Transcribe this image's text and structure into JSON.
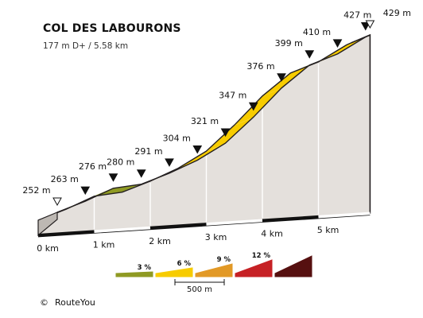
{
  "header": {
    "title": "COL DES LABOURONS",
    "subtitle": "177 m D+ / 5.58 km"
  },
  "credit": {
    "symbol": "©",
    "text": "RouteYou"
  },
  "chart_data": {
    "type": "area",
    "title": "COL DES LABOURONS",
    "subtitle": "177 m D+ / 5.58 km",
    "x_unit": "km",
    "y_unit": "m",
    "distance_km": 5.58,
    "total_climb_m": 177,
    "elevation_points": [
      {
        "km": 0.0,
        "elevation_m": 252,
        "label": "252 m",
        "marker": "start"
      },
      {
        "km": 0.5,
        "elevation_m": 263,
        "label": "263 m",
        "marker": "waypoint"
      },
      {
        "km": 1.0,
        "elevation_m": 276,
        "label": "276 m",
        "marker": "waypoint"
      },
      {
        "km": 1.5,
        "elevation_m": 280,
        "label": "280 m",
        "marker": "waypoint"
      },
      {
        "km": 2.0,
        "elevation_m": 291,
        "label": "291 m",
        "marker": "waypoint"
      },
      {
        "km": 2.5,
        "elevation_m": 304,
        "label": "304 m",
        "marker": "waypoint"
      },
      {
        "km": 3.0,
        "elevation_m": 321,
        "label": "321 m",
        "marker": "waypoint"
      },
      {
        "km": 3.5,
        "elevation_m": 347,
        "label": "347 m",
        "marker": "waypoint"
      },
      {
        "km": 4.0,
        "elevation_m": 376,
        "label": "376 m",
        "marker": "waypoint"
      },
      {
        "km": 4.5,
        "elevation_m": 399,
        "label": "399 m",
        "marker": "waypoint"
      },
      {
        "km": 5.0,
        "elevation_m": 410,
        "label": "410 m",
        "marker": "waypoint"
      },
      {
        "km": 5.5,
        "elevation_m": 427,
        "label": "427 m",
        "marker": "waypoint"
      },
      {
        "km": 5.58,
        "elevation_m": 429,
        "label": "429 m",
        "marker": "summit"
      }
    ],
    "km_ticks": [
      {
        "km": 0,
        "label": "0 km"
      },
      {
        "km": 1,
        "label": "1 km"
      },
      {
        "km": 2,
        "label": "2 km"
      },
      {
        "km": 3,
        "label": "3 km"
      },
      {
        "km": 4,
        "label": "4 km"
      },
      {
        "km": 5,
        "label": "5 km"
      }
    ],
    "gradient_legend": [
      {
        "label": "3 %",
        "color": "#8f9a23"
      },
      {
        "label": "6 %",
        "color": "#f7cc00"
      },
      {
        "label": "9 %",
        "color": "#e29926"
      },
      {
        "label": "12 %",
        "color": "#c62125"
      },
      {
        "label": "",
        "color": "#561010"
      }
    ],
    "scale_bar": {
      "label": "500 m"
    },
    "colors": {
      "slope_low": "#8f9a23",
      "slope_mid": "#f7cc00",
      "wall_fill": "#e4e0dc",
      "wall_edge": "#231f20",
      "divider": "#ffffff"
    }
  }
}
